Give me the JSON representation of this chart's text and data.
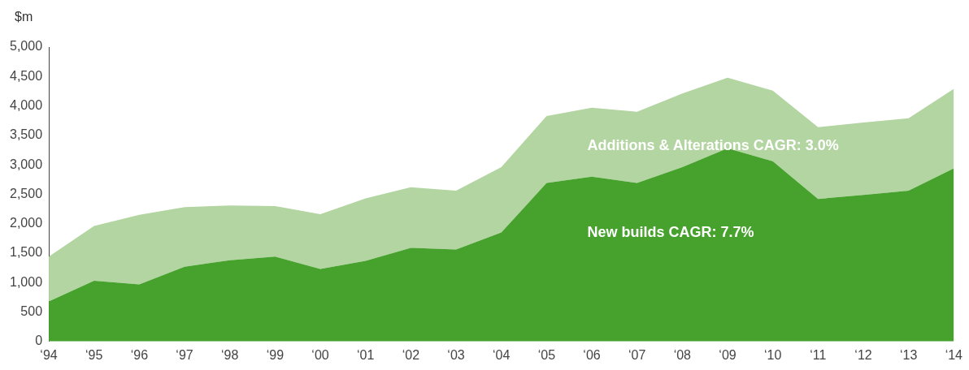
{
  "chart_data": {
    "type": "area",
    "stacked": true,
    "ylabel": "$m",
    "categories": [
      "‘94",
      "‘95",
      "‘96",
      "‘97",
      "‘98",
      "‘99",
      "‘00",
      "‘01",
      "‘02",
      "‘03",
      "‘04",
      "‘05",
      "‘06",
      "‘07",
      "‘08",
      "‘09",
      "‘10",
      "‘11",
      "‘12",
      "‘13",
      "‘14"
    ],
    "series": [
      {
        "color": "#46a22d",
        "values": [
          680,
          1030,
          970,
          1270,
          1380,
          1440,
          1230,
          1370,
          1590,
          1560,
          1850,
          2690,
          2800,
          2690,
          2960,
          3280,
          3060,
          2420,
          2490,
          2560,
          2940
        ]
      },
      {
        "color": "#b3d5a1",
        "values": [
          760,
          930,
          1180,
          1010,
          930,
          860,
          930,
          1060,
          1030,
          1000,
          1110,
          1140,
          1170,
          1210,
          1250,
          1200,
          1200,
          1220,
          1230,
          1230,
          1350
        ]
      }
    ],
    "ylim": [
      0,
      5000
    ],
    "yticks": [
      {
        "value": 0,
        "label": "0"
      },
      {
        "value": 500,
        "label": "500"
      },
      {
        "value": 1000,
        "label": "1,000"
      },
      {
        "value": 1500,
        "label": "1,500"
      },
      {
        "value": 2000,
        "label": "2,000"
      },
      {
        "value": 2500,
        "label": "2,500"
      },
      {
        "value": 3000,
        "label": "3,000"
      },
      {
        "value": 3500,
        "label": "3,500"
      },
      {
        "value": 4000,
        "label": "4,000"
      },
      {
        "value": 4500,
        "label": "4,500"
      },
      {
        "value": 5000,
        "label": "5,000"
      }
    ],
    "grid": false,
    "legend": false,
    "annotations": [
      "Additions & Alterations CAGR: 3.0%",
      "New builds CAGR: 7.7%"
    ]
  }
}
